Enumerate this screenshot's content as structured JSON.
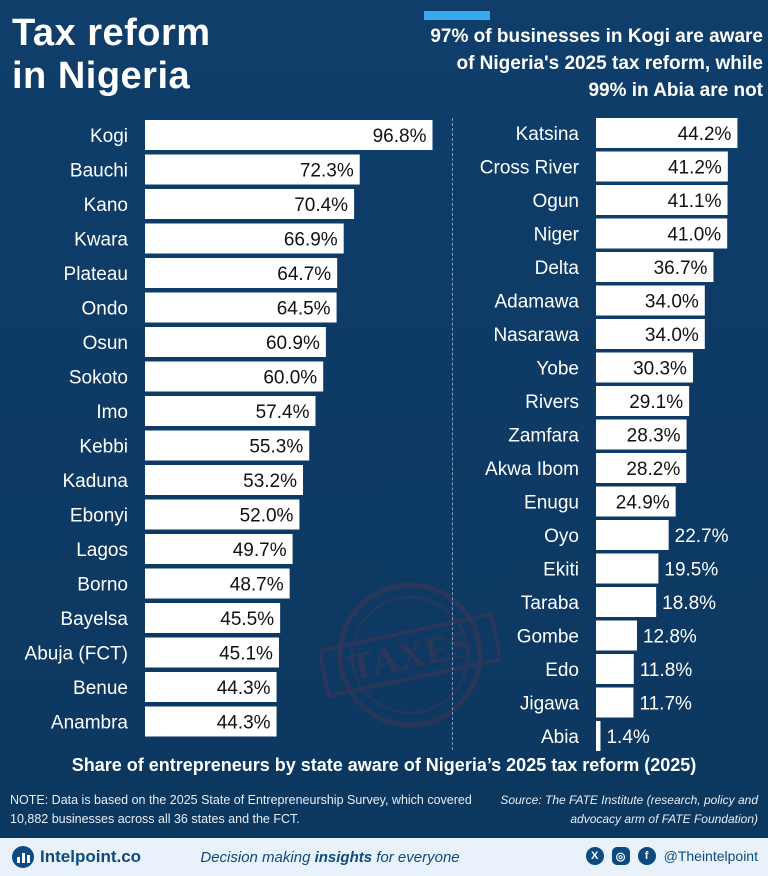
{
  "header": {
    "title_line1": "Tax reform",
    "title_line2": "in Nigeria",
    "subtitle": "97% of businesses in Kogi are aware of Nigeria's 2025 tax reform, while 99% in Abia are not"
  },
  "caption": "Share of entrepreneurs by state aware of Nigeria’s 2025 tax reform (2025)",
  "note": "NOTE: Data is based on the 2025 State of Entrepreneurship Survey, which covered 10,882 businesses across all 36 states and the FCT.",
  "source": "Source: The FATE Institute (research, policy and advocacy arm of FATE Foundation)",
  "watermark_text": "TAXES",
  "footer": {
    "brand": "Intelpoint.co",
    "tagline_pre": "Decision making ",
    "tagline_bold": "insights",
    "tagline_post": " for everyone",
    "handle": "@Theintelpoint",
    "icons": [
      "x-icon",
      "instagram-icon",
      "facebook-icon"
    ]
  },
  "colors": {
    "background": "#0e3b66",
    "bar": "#ffffff",
    "accent": "#39a9ee",
    "footer_bg": "#e9f2fb"
  },
  "chart_data": {
    "type": "bar",
    "orientation": "horizontal",
    "unit": "%",
    "xlim": [
      0,
      100
    ],
    "categories": [
      "Kogi",
      "Bauchi",
      "Kano",
      "Kwara",
      "Plateau",
      "Ondo",
      "Osun",
      "Sokoto",
      "Imo",
      "Kebbi",
      "Kaduna",
      "Ebonyi",
      "Lagos",
      "Borno",
      "Bayelsa",
      "Abuja (FCT)",
      "Benue",
      "Anambra",
      "Katsina",
      "Cross River",
      "Ogun",
      "Niger",
      "Delta",
      "Adamawa",
      "Nasarawa",
      "Yobe",
      "Rivers",
      "Zamfara",
      "Akwa Ibom",
      "Enugu",
      "Oyo",
      "Ekiti",
      "Taraba",
      "Gombe",
      "Edo",
      "Jigawa",
      "Abia"
    ],
    "values": [
      96.8,
      72.3,
      70.4,
      66.9,
      64.7,
      64.5,
      60.9,
      60.0,
      57.4,
      55.3,
      53.2,
      52.0,
      49.7,
      48.7,
      45.5,
      45.1,
      44.3,
      44.3,
      44.2,
      41.2,
      41.1,
      41.0,
      36.7,
      34.0,
      34.0,
      30.3,
      29.1,
      28.3,
      28.2,
      24.9,
      22.7,
      19.5,
      18.8,
      12.8,
      11.8,
      11.7,
      1.4
    ],
    "labels": [
      "96.8%",
      "72.3%",
      "70.4%",
      "66.9%",
      "64.7%",
      "64.5%",
      "60.9%",
      "60.0%",
      "57.4%",
      "55.3%",
      "53.2%",
      "52.0%",
      "49.7%",
      "48.7%",
      "45.5%",
      "45.1%",
      "44.3%",
      "44.3%",
      "44.2%",
      "41.2%",
      "41.1%",
      "41.0%",
      "36.7%",
      "34.0%",
      "34.0%",
      "30.3%",
      "29.1%",
      "28.3%",
      "28.2%",
      "24.9%",
      "22.7%",
      "19.5%",
      "18.8%",
      "12.8%",
      "11.8%",
      "11.7%",
      "1.4%"
    ],
    "panels": [
      {
        "from": 0,
        "to": 18
      },
      {
        "from": 18,
        "to": 37
      }
    ]
  }
}
